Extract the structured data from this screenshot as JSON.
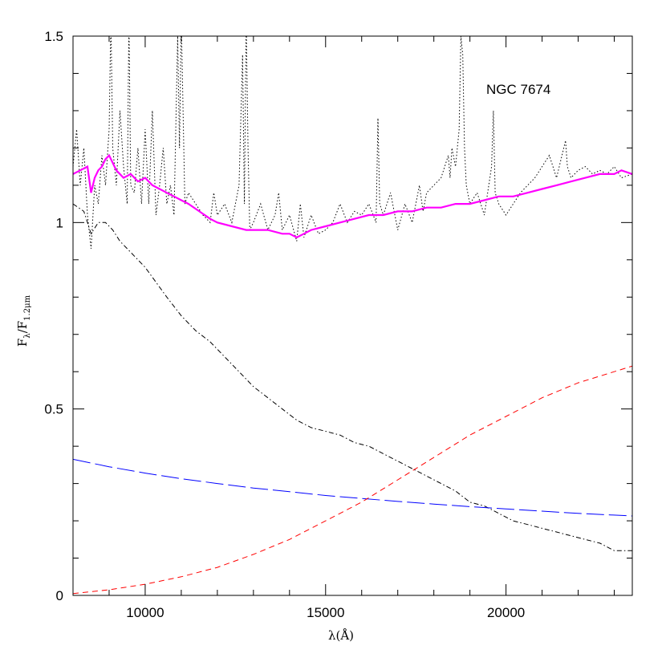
{
  "chart_data": {
    "type": "line",
    "title": "",
    "annotation": "NGC 7674",
    "xlabel": "λ(Å)",
    "ylabel_main": "F",
    "ylabel_sub1": "λ",
    "ylabel_mid": "/F",
    "ylabel_sub2": "1.2μm",
    "xlim": [
      8000,
      23500
    ],
    "ylim": [
      0,
      1.5
    ],
    "x_ticks": [
      10000,
      15000,
      20000
    ],
    "x_tick_labels": [
      "10000",
      "15000",
      "20000"
    ],
    "y_ticks": [
      0,
      0.5,
      1,
      1.5
    ],
    "y_tick_labels": [
      "0",
      "0.5",
      "1",
      "1.5"
    ],
    "grid": false,
    "legend": "none",
    "series": [
      {
        "style": "dotted",
        "color": "#000000",
        "x": [
          8000,
          8100,
          8200,
          8300,
          8400,
          8500,
          8600,
          8700,
          8800,
          8900,
          9000,
          9050,
          9100,
          9200,
          9300,
          9400,
          9500,
          9550,
          9600,
          9700,
          9800,
          9900,
          10000,
          10100,
          10200,
          10300,
          10400,
          10500,
          10600,
          10700,
          10800,
          10900,
          10950,
          11000,
          11100,
          11200,
          11400,
          11600,
          11800,
          11900,
          12000,
          12200,
          12400,
          12600,
          12700,
          12750,
          12800,
          12850,
          12900,
          13000,
          13200,
          13400,
          13600,
          13700,
          13800,
          14000,
          14200,
          14300,
          14400,
          14600,
          14800,
          15000,
          15200,
          15400,
          15600,
          15800,
          16000,
          16200,
          16400,
          16450,
          16500,
          16600,
          16800,
          17000,
          17200,
          17400,
          17600,
          17700,
          17800,
          18000,
          18200,
          18400,
          18450,
          18500,
          18600,
          18700,
          18750,
          18800,
          18850,
          18900,
          19000,
          19200,
          19400,
          19600,
          19650,
          19700,
          19800,
          20000,
          20200,
          20400,
          20600,
          20800,
          21000,
          21200,
          21400,
          21600,
          21650,
          21700,
          21800,
          22000,
          22200,
          22400,
          22600,
          22800,
          23000,
          23200,
          23500
        ],
        "y": [
          1.15,
          1.25,
          1.1,
          1.2,
          1.02,
          0.93,
          1.1,
          1.05,
          1.18,
          1.1,
          1.25,
          1.55,
          1.2,
          1.1,
          1.3,
          1.15,
          1.05,
          1.55,
          1.1,
          1.08,
          1.2,
          1.05,
          1.25,
          1.05,
          1.3,
          1.02,
          1.1,
          1.2,
          1.05,
          1.1,
          1.02,
          1.5,
          1.2,
          1.55,
          1.05,
          1.08,
          1.05,
          1.02,
          1.0,
          1.08,
          1.02,
          1.05,
          1.0,
          1.1,
          1.45,
          1.05,
          1.55,
          1.2,
          0.98,
          1.0,
          1.05,
          0.98,
          1.02,
          1.08,
          0.98,
          1.02,
          0.95,
          1.05,
          0.96,
          1.02,
          0.97,
          0.98,
          1.0,
          1.05,
          1.0,
          1.03,
          1.02,
          1.05,
          1.0,
          1.28,
          1.05,
          1.02,
          1.08,
          0.98,
          1.05,
          1.0,
          1.1,
          1.03,
          1.08,
          1.1,
          1.12,
          1.18,
          1.12,
          1.2,
          1.15,
          1.25,
          1.5,
          1.45,
          1.2,
          1.1,
          1.05,
          1.08,
          1.02,
          1.15,
          1.3,
          1.08,
          1.05,
          1.02,
          1.05,
          1.08,
          1.1,
          1.12,
          1.15,
          1.18,
          1.12,
          1.2,
          1.22,
          1.15,
          1.12,
          1.14,
          1.15,
          1.13,
          1.14,
          1.13,
          1.15,
          1.12,
          1.13
        ]
      },
      {
        "style": "solid",
        "color": "#ff00ff",
        "x": [
          8000,
          8200,
          8400,
          8500,
          8600,
          8700,
          8800,
          8900,
          9000,
          9100,
          9200,
          9400,
          9600,
          9800,
          10000,
          10200,
          10400,
          10600,
          10800,
          11000,
          11200,
          11500,
          11800,
          12000,
          12400,
          12800,
          13000,
          13400,
          13800,
          14000,
          14200,
          14400,
          14600,
          15000,
          15400,
          15800,
          16200,
          16600,
          17000,
          17400,
          17800,
          18200,
          18600,
          19000,
          19400,
          19800,
          20200,
          20600,
          21000,
          21400,
          21800,
          22200,
          22600,
          23000,
          23200,
          23500
        ],
        "y": [
          1.13,
          1.14,
          1.15,
          1.08,
          1.12,
          1.14,
          1.15,
          1.17,
          1.18,
          1.16,
          1.14,
          1.12,
          1.13,
          1.11,
          1.12,
          1.1,
          1.09,
          1.08,
          1.07,
          1.06,
          1.05,
          1.03,
          1.01,
          1.0,
          0.99,
          0.98,
          0.98,
          0.98,
          0.97,
          0.97,
          0.96,
          0.97,
          0.98,
          0.99,
          1.0,
          1.01,
          1.02,
          1.02,
          1.03,
          1.03,
          1.04,
          1.04,
          1.05,
          1.05,
          1.06,
          1.07,
          1.07,
          1.08,
          1.09,
          1.1,
          1.11,
          1.12,
          1.13,
          1.13,
          1.14,
          1.13
        ]
      },
      {
        "style": "dashdot",
        "color": "#000000",
        "x": [
          8000,
          8300,
          8500,
          8700,
          8900,
          9100,
          9300,
          9500,
          9800,
          10000,
          10300,
          10600,
          11000,
          11400,
          11800,
          12200,
          12600,
          13000,
          13400,
          13800,
          14200,
          14600,
          15000,
          15400,
          15800,
          16200,
          16600,
          17000,
          17400,
          17800,
          18200,
          18600,
          19000,
          19400,
          19800,
          20200,
          20600,
          21000,
          21400,
          21800,
          22200,
          22600,
          23000,
          23500
        ],
        "y": [
          1.05,
          1.03,
          0.97,
          1.0,
          1.0,
          0.98,
          0.95,
          0.93,
          0.9,
          0.88,
          0.84,
          0.8,
          0.75,
          0.71,
          0.68,
          0.64,
          0.6,
          0.56,
          0.53,
          0.5,
          0.47,
          0.45,
          0.44,
          0.43,
          0.41,
          0.4,
          0.38,
          0.36,
          0.34,
          0.32,
          0.3,
          0.28,
          0.25,
          0.24,
          0.22,
          0.2,
          0.19,
          0.18,
          0.17,
          0.16,
          0.15,
          0.14,
          0.12,
          0.12
        ]
      },
      {
        "style": "longdash",
        "color": "#0000ff",
        "x": [
          8000,
          9000,
          10000,
          11000,
          12000,
          13000,
          14000,
          15000,
          16000,
          17000,
          18000,
          19000,
          20000,
          21000,
          22000,
          23500
        ],
        "y": [
          0.365,
          0.345,
          0.328,
          0.313,
          0.3,
          0.288,
          0.278,
          0.268,
          0.26,
          0.252,
          0.245,
          0.238,
          0.232,
          0.226,
          0.22,
          0.213
        ]
      },
      {
        "style": "dashed",
        "color": "#ff0000",
        "x": [
          8000,
          9000,
          10000,
          11000,
          12000,
          13000,
          14000,
          15000,
          16000,
          17000,
          18000,
          19000,
          20000,
          21000,
          22000,
          23000,
          23500
        ],
        "y": [
          0.005,
          0.015,
          0.03,
          0.05,
          0.075,
          0.11,
          0.15,
          0.2,
          0.25,
          0.31,
          0.37,
          0.43,
          0.48,
          0.53,
          0.57,
          0.6,
          0.615
        ]
      }
    ]
  }
}
